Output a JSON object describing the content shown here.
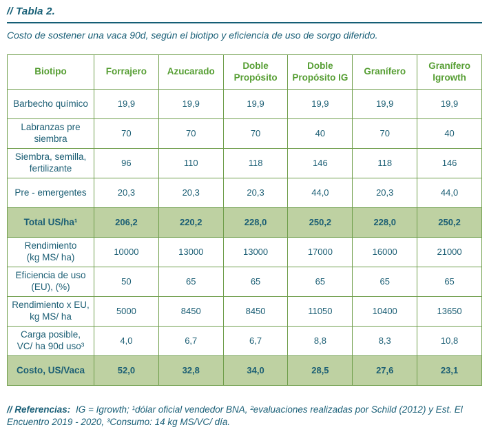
{
  "header": {
    "title": "// Tabla 2.",
    "subtitle": "Costo de sostener una vaca 90d, según el biotipo y eficiencia de uso de sorgo diferido."
  },
  "table": {
    "columns": [
      "Biotipo",
      "Forrajero",
      "Azucarado",
      "Doble\nPropósito",
      "Doble\nPropósito IG",
      "Granífero",
      "Granífero\nIgrowth"
    ],
    "rows": [
      {
        "label": "Barbecho químico",
        "values": [
          "19,9",
          "19,9",
          "19,9",
          "19,9",
          "19,9",
          "19,9"
        ],
        "highlight": false
      },
      {
        "label": "Labranzas pre\nsiembra",
        "values": [
          "70",
          "70",
          "70",
          "40",
          "70",
          "40"
        ],
        "highlight": false
      },
      {
        "label": "Siembra, semilla,\nfertilizante",
        "values": [
          "96",
          "110",
          "118",
          "146",
          "118",
          "146"
        ],
        "highlight": false
      },
      {
        "label": "Pre - emergentes",
        "values": [
          "20,3",
          "20,3",
          "20,3",
          "44,0",
          "20,3",
          "44,0"
        ],
        "highlight": false
      },
      {
        "label": "Total US/ha¹",
        "values": [
          "206,2",
          "220,2",
          "228,0",
          "250,2",
          "228,0",
          "250,2"
        ],
        "highlight": true
      },
      {
        "label": "Rendimiento\n(kg MS/ ha)",
        "values": [
          "10000",
          "13000",
          "13000",
          "17000",
          "16000",
          "21000"
        ],
        "highlight": false
      },
      {
        "label": "Eficiencia de uso\n(EU), (%)",
        "values": [
          "50",
          "65",
          "65",
          "65",
          "65",
          "65"
        ],
        "highlight": false
      },
      {
        "label": "Rendimiento x EU,\nkg MS/ ha",
        "values": [
          "5000",
          "8450",
          "8450",
          "11050",
          "10400",
          "13650"
        ],
        "highlight": false
      },
      {
        "label": "Carga posible,\nVC/ ha 90d uso³",
        "values": [
          "4,0",
          "6,7",
          "6,7",
          "8,8",
          "8,3",
          "10,8"
        ],
        "highlight": false
      },
      {
        "label": "Costo, US/Vaca",
        "values": [
          "52,0",
          "32,8",
          "34,0",
          "28,5",
          "27,6",
          "23,1"
        ],
        "highlight": true
      }
    ]
  },
  "footer": {
    "label": "// Referencias:",
    "text": " IG = Igrowth; ¹dólar oficial vendedor BNA, ²evaluaciones realizadas por Schild (2012) y Est. El Encuentro 2019 - 2020, ³Consumo: 14 kg MS/VC/ día."
  },
  "colors": {
    "teal_text": "#1b5e74",
    "green_header_text": "#569e33",
    "green_border": "#6f9e4b",
    "highlight_row_bg": "#bed1a2"
  }
}
